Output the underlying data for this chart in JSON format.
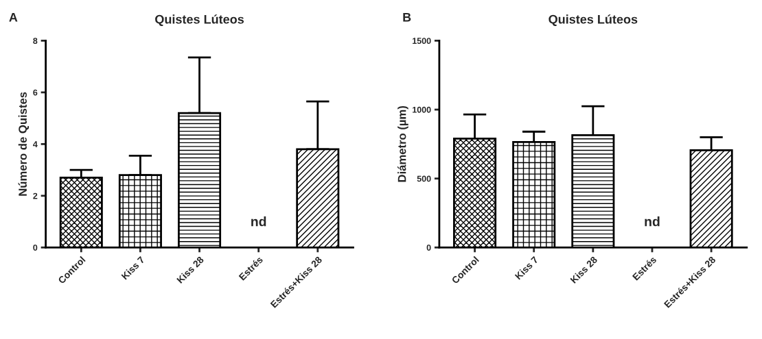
{
  "chart_data": [
    {
      "type": "bar",
      "title": "Quistes Lúteos",
      "ylabel": "Número de Quistes",
      "categories": [
        "Control",
        "Kiss 7",
        "Kiss 28",
        "Estrés",
        "Estrés+Kiss 28"
      ],
      "values": [
        2.7,
        2.8,
        5.2,
        null,
        3.8
      ],
      "errors": [
        0.3,
        0.75,
        2.15,
        null,
        1.85
      ],
      "color": "#000000",
      "ylim": [
        0,
        8
      ],
      "yticks": [
        0,
        2,
        4,
        6,
        8
      ],
      "grid": false,
      "legend": false,
      "annotations": [
        "A",
        "nd"
      ]
    },
    {
      "type": "bar",
      "title": "Quistes Lúteos",
      "ylabel": "Diámetro (µm)",
      "categories": [
        "Control",
        "Kiss 7",
        "Kiss 28",
        "Estrés",
        "Estrés+Kiss 28"
      ],
      "values": [
        790,
        765,
        815,
        null,
        705
      ],
      "errors": [
        175,
        75,
        210,
        null,
        95
      ],
      "color": "#000000",
      "ylim": [
        0,
        1500
      ],
      "yticks": [
        0,
        500,
        1000,
        1500
      ],
      "grid": false,
      "legend": false,
      "annotations": [
        "B",
        "nd"
      ]
    }
  ]
}
